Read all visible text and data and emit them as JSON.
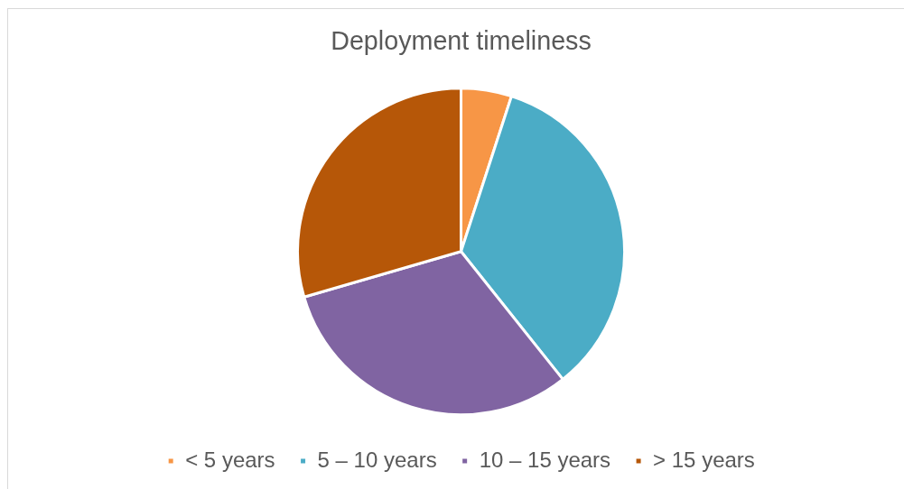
{
  "chart_data": {
    "type": "pie",
    "title": "Deployment timeliness",
    "categories": [
      "< 5 years",
      "5 – 10 years",
      "10 – 15 years",
      "> 15 years"
    ],
    "values": [
      5,
      34.3,
      31.2,
      29.5
    ],
    "colors": [
      "#f79646",
      "#4bacc6",
      "#8064a2",
      "#b65708"
    ],
    "legend": "bottom"
  }
}
